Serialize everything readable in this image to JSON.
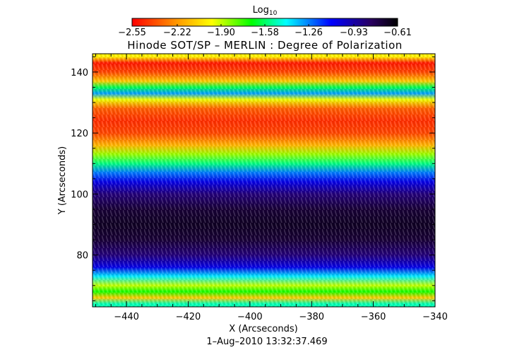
{
  "chart_data": {
    "type": "heatmap",
    "title": "Hinode SOT/SP – MERLIN : Degree of Polarization",
    "xlabel": "X (Arcseconds)",
    "ylabel": "Y (Arcseconds)",
    "xlim": [
      -451,
      -340
    ],
    "ylim": [
      63,
      146
    ],
    "x_ticks": [
      -440,
      -420,
      -400,
      -380,
      -360,
      -340
    ],
    "x_tick_labels": [
      "−440",
      "−420",
      "−400",
      "−380",
      "−360",
      "−340"
    ],
    "y_ticks": [
      80,
      100,
      120,
      140
    ],
    "y_tick_labels": [
      "80",
      "100",
      "120",
      "140"
    ],
    "colorbar": {
      "label": "Log",
      "label_subscript": "10",
      "min": -2.55,
      "max": -0.61,
      "ticks": [
        -2.55,
        -2.22,
        -1.9,
        -1.58,
        -1.26,
        -0.93,
        -0.61
      ],
      "tick_labels": [
        "−2.55",
        "−2.22",
        "−1.90",
        "−1.58",
        "−1.26",
        "−0.93",
        "−0.61"
      ],
      "colormap": "rainbow (red → yellow → green → cyan → blue → black)"
    },
    "y_profile": [
      {
        "y": 64,
        "value": -1.5
      },
      {
        "y": 66,
        "value": -2.1
      },
      {
        "y": 68,
        "value": -1.7
      },
      {
        "y": 70,
        "value": -1.9
      },
      {
        "y": 73,
        "value": -1.4
      },
      {
        "y": 76,
        "value": -1.05
      },
      {
        "y": 80,
        "value": -0.85
      },
      {
        "y": 85,
        "value": -0.72
      },
      {
        "y": 90,
        "value": -0.68
      },
      {
        "y": 95,
        "value": -0.72
      },
      {
        "y": 100,
        "value": -0.85
      },
      {
        "y": 104,
        "value": -1.05
      },
      {
        "y": 107,
        "value": -1.25
      },
      {
        "y": 110,
        "value": -1.55
      },
      {
        "y": 113,
        "value": -1.85
      },
      {
        "y": 116,
        "value": -2.15
      },
      {
        "y": 120,
        "value": -2.4
      },
      {
        "y": 124,
        "value": -2.45
      },
      {
        "y": 128,
        "value": -2.35
      },
      {
        "y": 131,
        "value": -1.95
      },
      {
        "y": 133,
        "value": -1.3
      },
      {
        "y": 135,
        "value": -1.6
      },
      {
        "y": 137,
        "value": -2.1
      },
      {
        "y": 140,
        "value": -2.4
      },
      {
        "y": 143,
        "value": -2.5
      },
      {
        "y": 145,
        "value": -2.0
      }
    ],
    "footer": "1–Aug–2010  13:32:37.469"
  }
}
